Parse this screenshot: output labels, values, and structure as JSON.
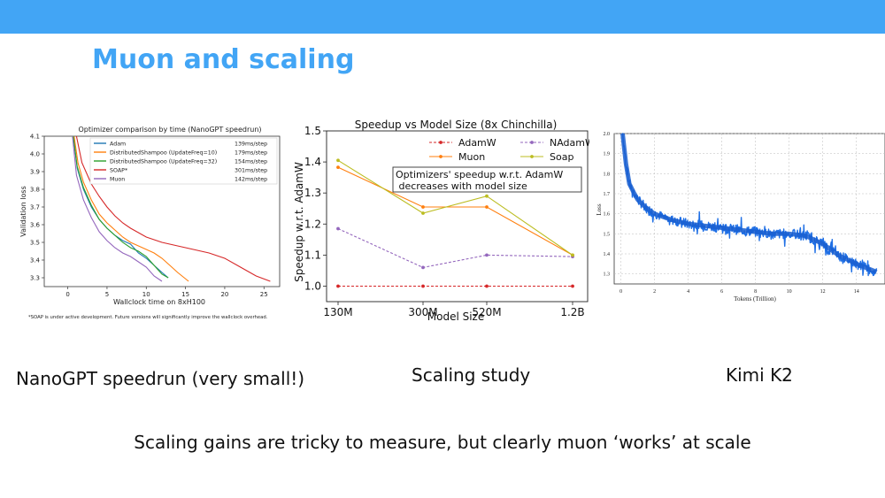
{
  "slide": {
    "title": "Muon and scaling",
    "captions": [
      "NanoGPT speedrun (very small!)",
      "Scaling study",
      "Kimi K2"
    ],
    "footer": "Scaling gains are tricky to measure, but clearly muon ‘works’ at scale",
    "accent": "#42a5f5"
  },
  "chart_data": [
    {
      "type": "line",
      "title": "Optimizer comparison by time (NanoGPT speedrun)",
      "xlabel": "Wallclock time on 8xH100",
      "ylabel": "Validation loss",
      "xlim": [
        -3,
        27
      ],
      "ylim": [
        3.25,
        4.1
      ],
      "xticks": [
        0,
        5,
        10,
        15,
        20,
        25
      ],
      "yticks": [
        3.3,
        3.4,
        3.5,
        3.6,
        3.7,
        3.8,
        3.9,
        4.0,
        4.1
      ],
      "footnote": "*SOAP is under active development. Future versions will significantly improve the wallclock overhead.",
      "legend_position": "top-right",
      "series": [
        {
          "name": "Adam",
          "step_time": "139ms/step",
          "color": "#1f77b4",
          "x": [
            0.7,
            1.2,
            2,
            3,
            4,
            5,
            6,
            7,
            8,
            9,
            10,
            11,
            12,
            12.8
          ],
          "y": [
            4.1,
            3.92,
            3.8,
            3.7,
            3.63,
            3.58,
            3.54,
            3.51,
            3.49,
            3.44,
            3.41,
            3.37,
            3.33,
            3.3
          ]
        },
        {
          "name": "DistributedShampoo (UpdateFreq=10)",
          "step_time": "179ms/step",
          "color": "#ff7f0e",
          "x": [
            0.8,
            1.3,
            2,
            3,
            4,
            5,
            6,
            7,
            8,
            9,
            10,
            11,
            12,
            13,
            14,
            15.4
          ],
          "y": [
            4.1,
            3.95,
            3.84,
            3.74,
            3.66,
            3.61,
            3.57,
            3.53,
            3.5,
            3.48,
            3.46,
            3.44,
            3.41,
            3.37,
            3.33,
            3.28
          ]
        },
        {
          "name": "DistributedShampoo (UpdateFreq=32)",
          "step_time": "154ms/step",
          "color": "#2ca02c",
          "x": [
            0.7,
            1.2,
            2,
            3,
            4,
            5,
            6,
            7,
            8,
            9,
            10,
            11,
            12,
            12.8
          ],
          "y": [
            4.1,
            3.93,
            3.81,
            3.71,
            3.63,
            3.58,
            3.54,
            3.5,
            3.47,
            3.45,
            3.42,
            3.37,
            3.32,
            3.3
          ]
        },
        {
          "name": "SOAP*",
          "step_time": "301ms/step",
          "color": "#d62728",
          "x": [
            1.1,
            1.8,
            3,
            4,
            5,
            6,
            7,
            8,
            10,
            12,
            14,
            16,
            18,
            20,
            22,
            24,
            25.8
          ],
          "y": [
            4.1,
            3.95,
            3.83,
            3.76,
            3.7,
            3.65,
            3.61,
            3.58,
            3.53,
            3.5,
            3.48,
            3.46,
            3.44,
            3.41,
            3.36,
            3.31,
            3.28
          ]
        },
        {
          "name": "Muon",
          "step_time": "142ms/step",
          "color": "#9467bd",
          "x": [
            0.6,
            1.1,
            2,
            3,
            4,
            5,
            6,
            7,
            8,
            9,
            10,
            11,
            12
          ],
          "y": [
            4.1,
            3.88,
            3.74,
            3.64,
            3.56,
            3.51,
            3.47,
            3.44,
            3.42,
            3.39,
            3.36,
            3.31,
            3.28
          ]
        }
      ]
    },
    {
      "type": "line",
      "title": "Speedup vs Model Size (8x Chinchilla)",
      "xlabel": "Model Size",
      "ylabel": "Speedup w.r.t. AdamW",
      "categories": [
        "130M",
        "300M",
        "520M",
        "1.2B"
      ],
      "ylim": [
        0.95,
        1.5
      ],
      "yticks": [
        1.0,
        1.1,
        1.2,
        1.3,
        1.4,
        1.5
      ],
      "annotation": [
        "Optimizers' speedup w.r.t. AdamW",
        " decreases with model size"
      ],
      "legend_position": "top",
      "series": [
        {
          "name": "AdamW",
          "color": "#d62728",
          "dashed": true,
          "values": [
            1.0,
            1.0,
            1.0,
            1.0
          ]
        },
        {
          "name": "NAdamW",
          "color": "#9467bd",
          "dashed": true,
          "values": [
            1.185,
            1.06,
            1.1,
            1.095
          ]
        },
        {
          "name": "Muon",
          "color": "#ff7f0e",
          "dashed": false,
          "values": [
            1.383,
            1.255,
            1.255,
            1.1
          ]
        },
        {
          "name": "Soap",
          "color": "#bcbd22",
          "dashed": false,
          "values": [
            1.405,
            1.235,
            1.29,
            1.1
          ]
        }
      ]
    },
    {
      "type": "line",
      "title": "",
      "xlabel": "Tokens (Trillion)",
      "ylabel": "Loss",
      "xlim": [
        -0.4,
        15.7
      ],
      "ylim": [
        1.25,
        2.0
      ],
      "xticks": [
        0,
        2,
        4,
        6,
        8,
        10,
        12,
        14
      ],
      "yticks": [
        1.3,
        1.4,
        1.5,
        1.6,
        1.7,
        1.8,
        1.9,
        2.0
      ],
      "grid": true,
      "series": [
        {
          "color": "#1f6fe5",
          "x": [
            0.1,
            0.3,
            0.5,
            0.8,
            1.0,
            1.5,
            2.0,
            3.0,
            4.0,
            5.0,
            6.0,
            7.0,
            8.0,
            9.0,
            10.0,
            11.0,
            12.0,
            13.0,
            14.0,
            15.2
          ],
          "y": [
            2.0,
            1.85,
            1.75,
            1.7,
            1.67,
            1.63,
            1.6,
            1.57,
            1.55,
            1.54,
            1.53,
            1.52,
            1.51,
            1.5,
            1.5,
            1.49,
            1.45,
            1.39,
            1.35,
            1.31
          ]
        }
      ]
    }
  ]
}
